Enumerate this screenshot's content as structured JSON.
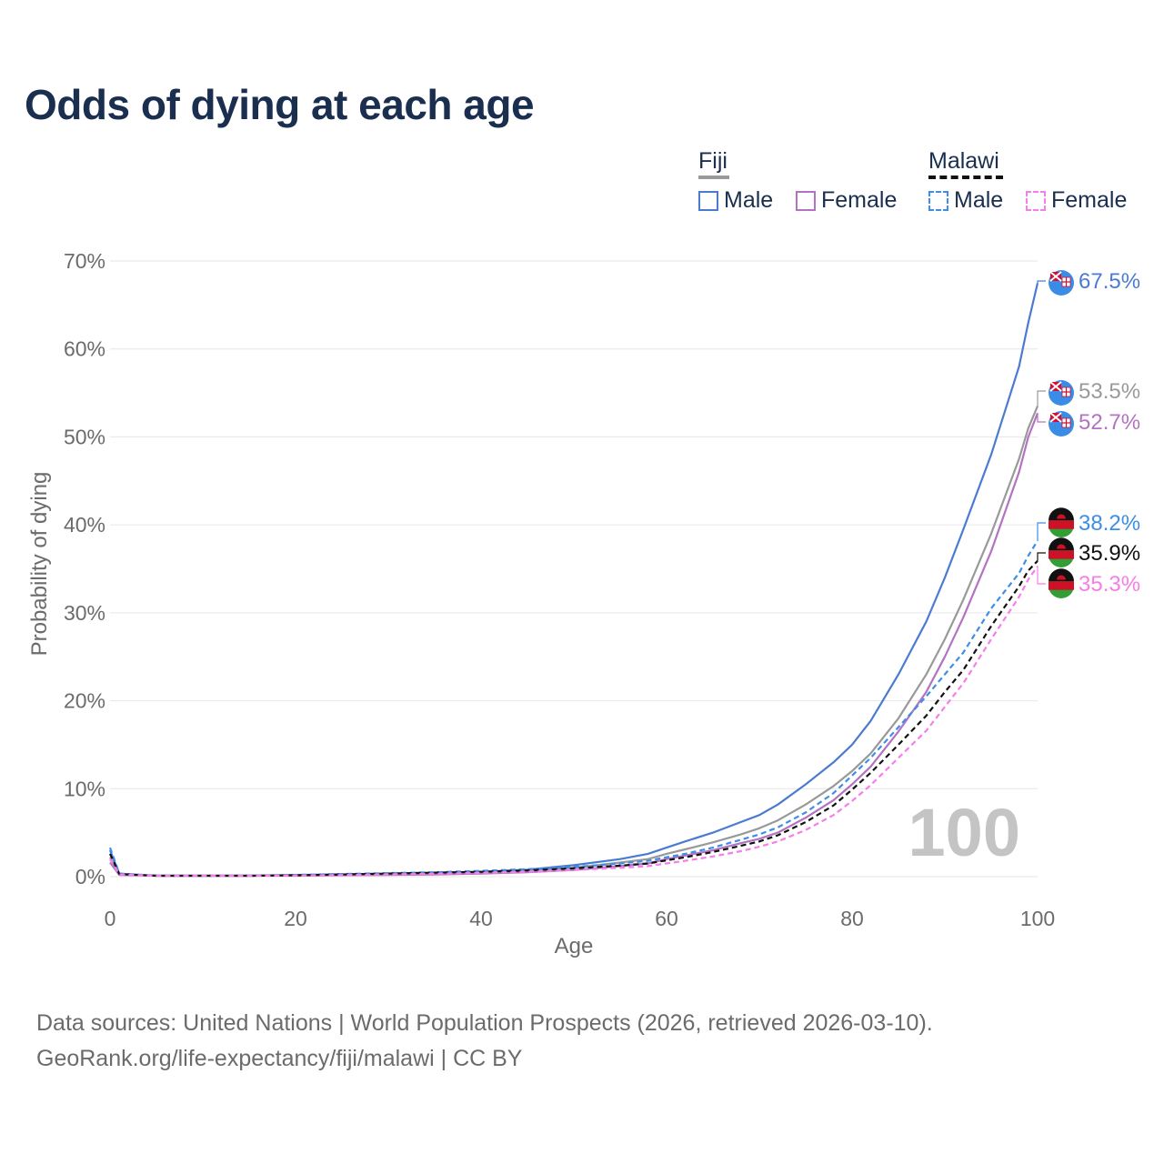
{
  "title": "Odds of dying at each age",
  "legend": {
    "groups": [
      {
        "name": "Fiji",
        "items": [
          {
            "label": "Male",
            "color": "#4a7bd0",
            "dashed": false
          },
          {
            "label": "Female",
            "color": "#b373c0",
            "dashed": false
          }
        ]
      },
      {
        "name": "Malawi",
        "items": [
          {
            "label": "Male",
            "color": "#3d8ee8",
            "dashed": true
          },
          {
            "label": "Female",
            "color": "#f57ee8",
            "dashed": true
          }
        ]
      }
    ]
  },
  "source": {
    "line1": "Data sources: United Nations | World Population Prospects (2026, retrieved 2026-03-10).",
    "line2": "GeoRank.org/life-expectancy/fiji/malawi | CC BY"
  },
  "chart_data": {
    "type": "line",
    "title": "Odds of dying at each age",
    "xlabel": "Age",
    "ylabel": "Probability of dying",
    "xlim": [
      0,
      100
    ],
    "ylim": [
      0,
      70
    ],
    "xticks": [
      "0",
      "20",
      "40",
      "60",
      "80",
      "100"
    ],
    "yticks": [
      "0%",
      "10%",
      "20%",
      "30%",
      "40%",
      "50%",
      "60%",
      "70%"
    ],
    "watermark": "100",
    "x": [
      0,
      1,
      5,
      10,
      15,
      20,
      25,
      30,
      35,
      40,
      45,
      50,
      55,
      58,
      60,
      62,
      65,
      68,
      70,
      72,
      75,
      78,
      80,
      82,
      85,
      88,
      90,
      92,
      95,
      98,
      99,
      100
    ],
    "series": [
      {
        "name": "Fiji Male",
        "country": "Fiji",
        "color": "#4a7bd0",
        "dashed": false,
        "end_label": "67.5%",
        "values": [
          3.0,
          0.3,
          0.1,
          0.1,
          0.1,
          0.2,
          0.25,
          0.3,
          0.4,
          0.55,
          0.8,
          1.3,
          2.0,
          2.6,
          3.3,
          4.0,
          5.0,
          6.2,
          7.0,
          8.2,
          10.5,
          13.0,
          15.0,
          17.7,
          23.0,
          29.0,
          34.0,
          39.5,
          48.0,
          58.0,
          63.0,
          67.5
        ]
      },
      {
        "name": "Fiji Total",
        "country": "Fiji",
        "color": "#999999",
        "dashed": false,
        "end_label": "53.5%",
        "values": [
          2.2,
          0.25,
          0.1,
          0.1,
          0.1,
          0.15,
          0.2,
          0.25,
          0.3,
          0.45,
          0.65,
          1.0,
          1.6,
          2.0,
          2.6,
          3.1,
          3.9,
          4.8,
          5.5,
          6.4,
          8.2,
          10.3,
          12.0,
          14.0,
          18.0,
          23.0,
          27.0,
          31.5,
          39.0,
          47.5,
          51.0,
          53.5
        ]
      },
      {
        "name": "Fiji Female",
        "country": "Fiji",
        "color": "#b373c0",
        "dashed": false,
        "end_label": "52.7%",
        "values": [
          1.6,
          0.2,
          0.1,
          0.1,
          0.1,
          0.1,
          0.15,
          0.2,
          0.25,
          0.35,
          0.5,
          0.75,
          1.2,
          1.5,
          2.0,
          2.4,
          3.0,
          3.8,
          4.3,
          5.0,
          6.7,
          8.7,
          10.5,
          12.5,
          16.5,
          21.0,
          25.0,
          29.5,
          37.0,
          46.0,
          50.0,
          52.7
        ]
      },
      {
        "name": "Malawi Male",
        "country": "Malawi",
        "color": "#3d8ee8",
        "dashed": true,
        "end_label": "38.2%",
        "values": [
          3.3,
          0.35,
          0.12,
          0.1,
          0.12,
          0.2,
          0.3,
          0.4,
          0.5,
          0.65,
          0.85,
          1.1,
          1.5,
          1.8,
          2.2,
          2.6,
          3.3,
          4.2,
          4.8,
          5.6,
          7.3,
          9.5,
          11.5,
          13.5,
          17.0,
          20.5,
          23.0,
          25.5,
          30.5,
          34.5,
          36.5,
          38.2
        ]
      },
      {
        "name": "Malawi Total",
        "country": "Malawi",
        "color": "#111111",
        "dashed": true,
        "end_label": "35.9%",
        "values": [
          2.6,
          0.3,
          0.1,
          0.1,
          0.1,
          0.15,
          0.25,
          0.35,
          0.45,
          0.55,
          0.7,
          0.95,
          1.25,
          1.5,
          1.85,
          2.2,
          2.8,
          3.5,
          4.0,
          4.7,
          6.2,
          8.1,
          9.9,
          11.8,
          15.0,
          18.3,
          21.0,
          23.5,
          28.5,
          33.0,
          34.8,
          35.9
        ]
      },
      {
        "name": "Malawi Female",
        "country": "Malawi",
        "color": "#f57ee8",
        "dashed": true,
        "end_label": "35.3%",
        "values": [
          2.0,
          0.25,
          0.1,
          0.1,
          0.1,
          0.12,
          0.18,
          0.25,
          0.32,
          0.42,
          0.55,
          0.75,
          1.0,
          1.2,
          1.5,
          1.8,
          2.3,
          2.9,
          3.4,
          4.0,
          5.3,
          7.0,
          8.6,
          10.4,
          13.5,
          16.6,
          19.3,
          22.0,
          27.0,
          31.8,
          33.8,
          35.3
        ]
      }
    ]
  }
}
